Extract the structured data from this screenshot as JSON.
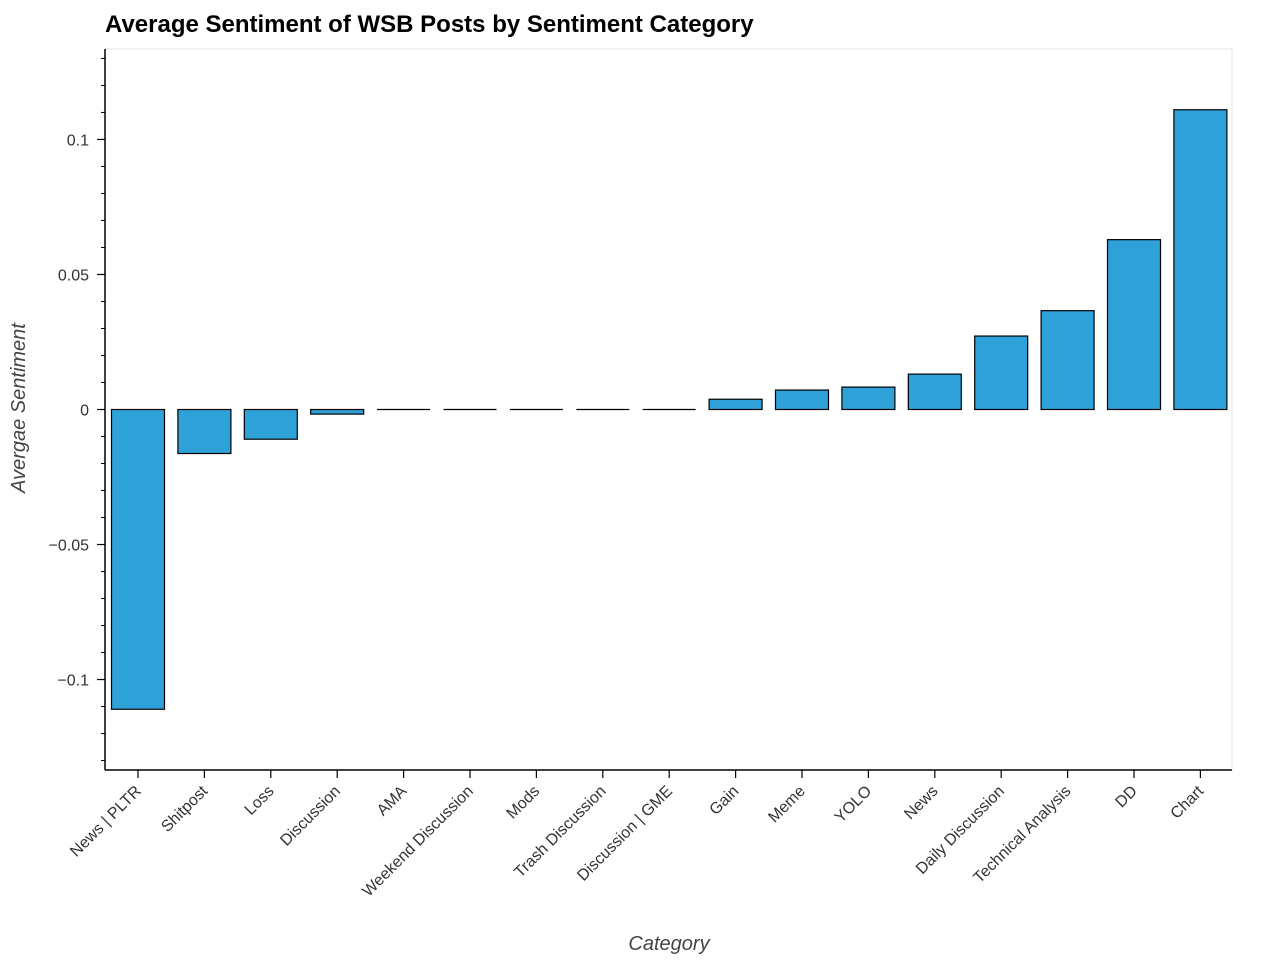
{
  "chart_data": {
    "type": "bar",
    "title": "Average Sentiment of WSB Posts by Sentiment Category",
    "xlabel": "Category",
    "ylabel": "Avergae Sentiment",
    "categories": [
      "News | PLTR",
      "Shitpost",
      "Loss",
      "Discussion",
      "AMA",
      "Weekend Discussion",
      "Mods",
      "Trash Discussion",
      "Discussion | GME",
      "Gain",
      "Meme",
      "YOLO",
      "News",
      "Daily Discussion",
      "Technical Analysis",
      "DD",
      "Chart"
    ],
    "values": [
      -0.111,
      -0.0163,
      -0.011,
      -0.0017,
      0,
      0,
      0,
      0,
      0,
      0.0038,
      0.0072,
      0.0083,
      0.0131,
      0.0272,
      0.0366,
      0.0629,
      0.111
    ],
    "ylim": [
      -0.1335,
      0.1335
    ],
    "yticks": [
      -0.1,
      -0.05,
      0,
      0.05,
      0.1
    ],
    "ytick_labels": [
      "−0.1",
      "−0.05",
      "0",
      "0.05",
      "0.1"
    ],
    "grid": false,
    "bar_color": "#2fa1d9",
    "bar_edge_color": "#000000"
  }
}
